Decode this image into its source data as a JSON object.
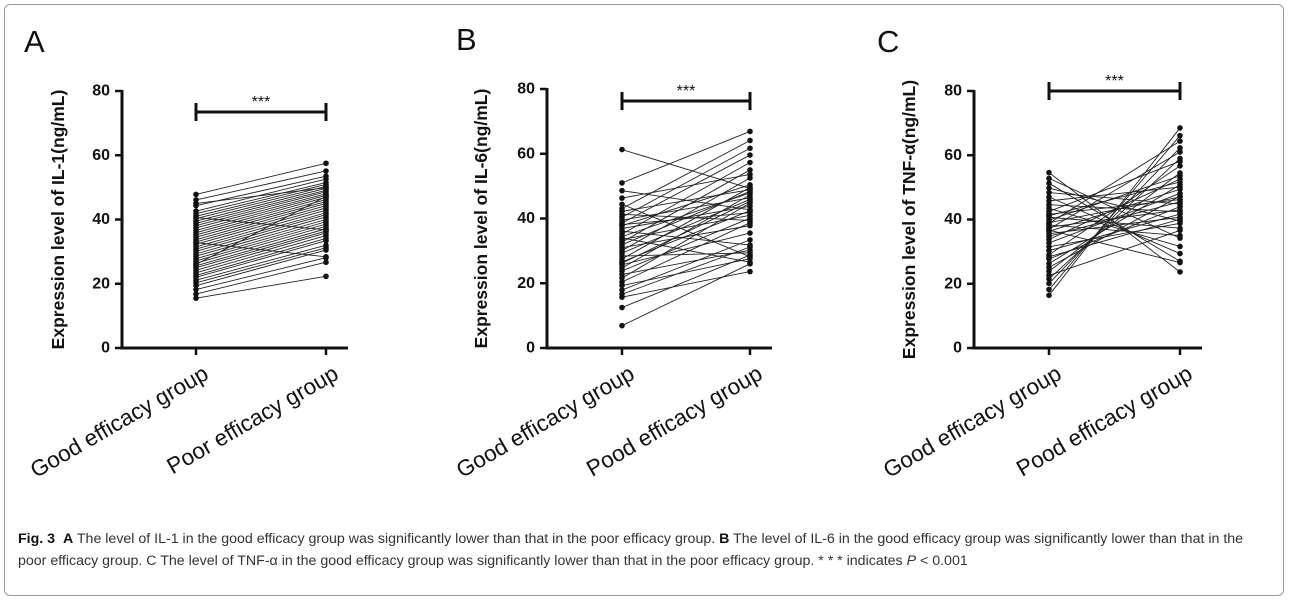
{
  "caption": {
    "fig": "Fig. 3",
    "part1_letter": "A",
    "part1_text": " The level of IL-1 in the good efficacy group was significantly lower than that in the poor efficacy group. ",
    "part2_letter": "B",
    "part2_text": " The level of IL-6 in the good efficacy group was significantly lower than that in the poor efficacy group. C The level of TNF-α in the good efficacy group was significantly lower than that in the poor efficacy group. * * * indicates ",
    "p_symbol": "P",
    "p_value": " < 0.001"
  },
  "chart_data": [
    {
      "type": "scatter",
      "panel_letter": "A",
      "title": "",
      "xlabel": "",
      "ylabel": "Expression level of IL-1(ng/mL)",
      "categories": [
        "Good efficacy group",
        "Poor efficacy group"
      ],
      "ylim": [
        0,
        80
      ],
      "yticks": [
        "0",
        "20",
        "40",
        "60",
        "80"
      ],
      "significance": "***",
      "grid": false,
      "paired_values": [
        [
          15.5,
          22.3
        ],
        [
          16.8,
          26.7
        ],
        [
          18.2,
          28.1
        ],
        [
          19.4,
          30.5
        ],
        [
          20.3,
          31.2
        ],
        [
          21.1,
          32.0
        ],
        [
          22.0,
          33.4
        ],
        [
          22.6,
          34.1
        ],
        [
          23.4,
          35.0
        ],
        [
          24.2,
          35.8
        ],
        [
          25.0,
          36.4
        ],
        [
          25.6,
          37.1
        ],
        [
          26.4,
          37.9
        ],
        [
          27.1,
          38.6
        ],
        [
          27.8,
          39.3
        ],
        [
          28.6,
          40.0
        ],
        [
          29.3,
          40.8
        ],
        [
          30.1,
          41.5
        ],
        [
          30.8,
          42.1
        ],
        [
          31.5,
          42.9
        ],
        [
          32.3,
          43.6
        ],
        [
          33.0,
          44.3
        ],
        [
          33.7,
          45.0
        ],
        [
          34.5,
          45.6
        ],
        [
          35.2,
          46.2
        ],
        [
          35.9,
          46.9
        ],
        [
          36.6,
          47.5
        ],
        [
          37.4,
          48.0
        ],
        [
          38.1,
          48.6
        ],
        [
          38.8,
          49.1
        ],
        [
          39.5,
          49.7
        ],
        [
          40.3,
          50.3
        ],
        [
          41.0,
          50.9
        ],
        [
          41.8,
          51.5
        ],
        [
          42.6,
          52.6
        ],
        [
          44.3,
          53.5
        ],
        [
          46.1,
          55.1
        ],
        [
          47.8,
          57.5
        ],
        [
          26.0,
          47.2
        ],
        [
          32.8,
          28.4
        ],
        [
          40.6,
          36.8
        ],
        [
          45.0,
          49.9
        ]
      ]
    },
    {
      "type": "scatter",
      "panel_letter": "B",
      "title": "",
      "xlabel": "",
      "ylabel": "Expression level of IL-6(ng/mL)",
      "categories": [
        "Good efficacy group",
        "Pood efficacy group"
      ],
      "ylim": [
        0,
        80
      ],
      "yticks": [
        "0",
        "20",
        "40",
        "60",
        "80"
      ],
      "significance": "***",
      "grid": false,
      "paired_values": [
        [
          6.9,
          26.0
        ],
        [
          12.5,
          28.7
        ],
        [
          15.7,
          23.6
        ],
        [
          16.6,
          31.2
        ],
        [
          17.9,
          33.4
        ],
        [
          19.3,
          27.6
        ],
        [
          20.4,
          38.7
        ],
        [
          21.6,
          44.8
        ],
        [
          22.7,
          30.2
        ],
        [
          23.8,
          40.1
        ],
        [
          24.7,
          47.3
        ],
        [
          25.7,
          35.5
        ],
        [
          26.6,
          42.4
        ],
        [
          27.5,
          49.6
        ],
        [
          28.4,
          29.4
        ],
        [
          29.3,
          45.9
        ],
        [
          30.1,
          52.5
        ],
        [
          31.0,
          37.8
        ],
        [
          31.9,
          48.4
        ],
        [
          32.7,
          55.0
        ],
        [
          33.5,
          41.0
        ],
        [
          34.4,
          47.9
        ],
        [
          35.2,
          57.3
        ],
        [
          36.1,
          31.8
        ],
        [
          36.9,
          43.8
        ],
        [
          37.8,
          50.4
        ],
        [
          38.6,
          59.6
        ],
        [
          39.5,
          46.4
        ],
        [
          40.4,
          61.7
        ],
        [
          41.3,
          39.4
        ],
        [
          42.2,
          48.9
        ],
        [
          43.1,
          64.1
        ],
        [
          44.4,
          28.2
        ],
        [
          46.3,
          53.6
        ],
        [
          48.6,
          42.7
        ],
        [
          51.0,
          66.9
        ],
        [
          61.3,
          49.3
        ],
        [
          26.2,
          45.3
        ],
        [
          34.0,
          26.5
        ],
        [
          38.1,
          41.8
        ]
      ]
    },
    {
      "type": "scatter",
      "panel_letter": "C",
      "title": "",
      "xlabel": "",
      "ylabel": "Expression level of TNF-α(ng/mL)",
      "categories": [
        "Good efficacy group",
        "Pood efficacy group"
      ],
      "ylim": [
        0,
        80
      ],
      "yticks": [
        "0",
        "20",
        "40",
        "60",
        "80"
      ],
      "significance": "***",
      "grid": false,
      "paired_values": [
        [
          16.4,
          68.5
        ],
        [
          18.2,
          66.1
        ],
        [
          20.1,
          62.3
        ],
        [
          21.5,
          59.0
        ],
        [
          22.6,
          36.6
        ],
        [
          23.9,
          54.5
        ],
        [
          25.1,
          47.3
        ],
        [
          26.3,
          50.8
        ],
        [
          27.7,
          44.0
        ],
        [
          29.0,
          56.7
        ],
        [
          30.3,
          41.7
        ],
        [
          31.5,
          38.8
        ],
        [
          32.7,
          48.1
        ],
        [
          33.8,
          52.6
        ],
        [
          34.8,
          45.5
        ],
        [
          35.6,
          40.7
        ],
        [
          36.3,
          49.4
        ],
        [
          37.0,
          61.0
        ],
        [
          37.6,
          43.0
        ],
        [
          38.3,
          35.0
        ],
        [
          39.0,
          47.0
        ],
        [
          39.8,
          53.6
        ],
        [
          40.7,
          37.3
        ],
        [
          41.6,
          46.2
        ],
        [
          42.5,
          58.1
        ],
        [
          43.5,
          31.6
        ],
        [
          44.6,
          42.4
        ],
        [
          45.8,
          50.1
        ],
        [
          47.0,
          29.4
        ],
        [
          48.4,
          44.8
        ],
        [
          49.8,
          39.5
        ],
        [
          51.3,
          27.0
        ],
        [
          52.8,
          34.2
        ],
        [
          54.6,
          23.7
        ],
        [
          36.7,
          26.6
        ],
        [
          38.8,
          64.4
        ],
        [
          41.2,
          51.7
        ],
        [
          28.4,
          40.1
        ]
      ]
    }
  ]
}
